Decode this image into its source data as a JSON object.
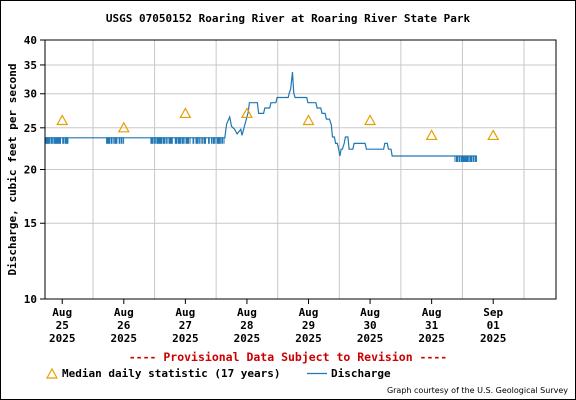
{
  "chart_data": {
    "type": "line",
    "title": "USGS 07050152 Roaring River at Roaring River State Park",
    "ylabel": "Discharge, cubic feet per second",
    "xlabel": "",
    "yscale": "log",
    "ylim": [
      10,
      40
    ],
    "yticks": [
      10,
      15,
      20,
      25,
      30,
      35,
      40
    ],
    "xlim_days": [
      0,
      8.3
    ],
    "x_ticks": [
      {
        "day": 0.28,
        "lines": [
          "Aug",
          "25",
          "2025"
        ]
      },
      {
        "day": 1.28,
        "lines": [
          "Aug",
          "26",
          "2025"
        ]
      },
      {
        "day": 2.28,
        "lines": [
          "Aug",
          "27",
          "2025"
        ]
      },
      {
        "day": 3.28,
        "lines": [
          "Aug",
          "28",
          "2025"
        ]
      },
      {
        "day": 4.28,
        "lines": [
          "Aug",
          "29",
          "2025"
        ]
      },
      {
        "day": 5.28,
        "lines": [
          "Aug",
          "30",
          "2025"
        ]
      },
      {
        "day": 6.28,
        "lines": [
          "Aug",
          "31",
          "2025"
        ]
      },
      {
        "day": 7.28,
        "lines": [
          "Sep",
          "01",
          "2025"
        ]
      }
    ],
    "grid": true,
    "series": [
      {
        "name": "Median daily statistic (17 years)",
        "style": "triangle",
        "color": "#e69f00",
        "points": [
          [
            0.28,
            26
          ],
          [
            1.28,
            25
          ],
          [
            2.28,
            27
          ],
          [
            3.28,
            27
          ],
          [
            4.28,
            26
          ],
          [
            5.28,
            26
          ],
          [
            6.28,
            24
          ],
          [
            7.28,
            24
          ]
        ]
      },
      {
        "name": "Discharge",
        "style": "line",
        "color": "#1f77b4",
        "noise_ranges": [
          [
            0.0,
            0.38
          ],
          [
            1.0,
            1.28
          ],
          [
            1.72,
            2.92
          ],
          [
            6.66,
            7.01
          ]
        ],
        "points": [
          [
            0.0,
            23.7
          ],
          [
            0.38,
            23.7
          ],
          [
            1.0,
            23.7
          ],
          [
            1.28,
            23.7
          ],
          [
            1.72,
            23.7
          ],
          [
            2.92,
            23.7
          ],
          [
            2.95,
            25.5
          ],
          [
            3.0,
            26.5
          ],
          [
            3.03,
            25.2
          ],
          [
            3.08,
            24.8
          ],
          [
            3.12,
            24.2
          ],
          [
            3.18,
            24.8
          ],
          [
            3.2,
            24.0
          ],
          [
            3.3,
            27.2
          ],
          [
            3.32,
            28.6
          ],
          [
            3.45,
            28.6
          ],
          [
            3.47,
            27.0
          ],
          [
            3.55,
            27.0
          ],
          [
            3.57,
            27.8
          ],
          [
            3.65,
            27.8
          ],
          [
            3.67,
            28.6
          ],
          [
            3.75,
            28.6
          ],
          [
            3.77,
            29.4
          ],
          [
            3.95,
            29.4
          ],
          [
            3.97,
            30.2
          ],
          [
            3.99,
            30.7
          ],
          [
            4.0,
            31.8
          ],
          [
            4.02,
            33.7
          ],
          [
            4.04,
            30.2
          ],
          [
            4.06,
            29.4
          ],
          [
            4.25,
            29.4
          ],
          [
            4.27,
            28.6
          ],
          [
            4.4,
            28.6
          ],
          [
            4.42,
            27.8
          ],
          [
            4.48,
            27.8
          ],
          [
            4.5,
            27.0
          ],
          [
            4.55,
            27.0
          ],
          [
            4.57,
            26.2
          ],
          [
            4.62,
            26.2
          ],
          [
            4.65,
            25.4
          ],
          [
            4.67,
            23.8
          ],
          [
            4.7,
            23.8
          ],
          [
            4.72,
            23.0
          ],
          [
            4.75,
            23.0
          ],
          [
            4.77,
            22.3
          ],
          [
            4.79,
            21.5
          ],
          [
            4.81,
            22.3
          ],
          [
            4.83,
            22.3
          ],
          [
            4.86,
            23.0
          ],
          [
            4.88,
            23.8
          ],
          [
            4.92,
            23.8
          ],
          [
            4.94,
            22.3
          ],
          [
            5.0,
            22.3
          ],
          [
            5.02,
            23.0
          ],
          [
            5.2,
            23.0
          ],
          [
            5.22,
            22.3
          ],
          [
            5.5,
            22.3
          ],
          [
            5.52,
            23.0
          ],
          [
            5.56,
            23.0
          ],
          [
            5.58,
            22.3
          ],
          [
            5.62,
            22.3
          ],
          [
            5.64,
            21.5
          ],
          [
            6.0,
            21.5
          ],
          [
            6.66,
            21.5
          ],
          [
            7.01,
            21.5
          ]
        ]
      }
    ]
  },
  "footer": {
    "provisional": "---- Provisional Data Subject to Revision ----",
    "legend_median": "Median daily statistic (17 years)",
    "legend_discharge": "Discharge",
    "credit": "Graph courtesy of the U.S. Geological Survey"
  }
}
